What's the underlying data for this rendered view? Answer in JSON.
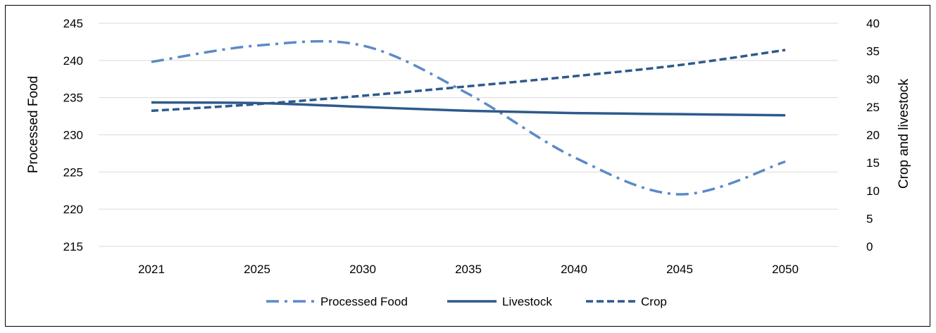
{
  "colors": {
    "processed_food": "#5b8ac7",
    "livestock": "#2e5a8c",
    "crop": "#2e5a8c",
    "grid": "#d9d9d9"
  },
  "chart_data": {
    "type": "line",
    "categories": [
      "2021",
      "2025",
      "2030",
      "2035",
      "2040",
      "2045",
      "2050"
    ],
    "y_left": {
      "label": "Processed Food",
      "min": 215,
      "max": 245,
      "step": 5
    },
    "y_right": {
      "label": "Crop and livestock",
      "min": 0,
      "max": 40,
      "step": 5
    },
    "grid": true,
    "legend_position": "bottom",
    "series": [
      {
        "name": "Processed Food",
        "axis": "left",
        "style": "dash-dot",
        "values": [
          239.8,
          242.0,
          242.0,
          235.5,
          227.0,
          222.0,
          226.4
        ]
      },
      {
        "name": "Livestock",
        "axis": "right",
        "style": "solid",
        "values": [
          25.8,
          25.7,
          25.0,
          24.3,
          23.9,
          23.7,
          23.5
        ]
      },
      {
        "name": "Crop",
        "axis": "right",
        "style": "dashed",
        "values": [
          24.3,
          25.5,
          27.0,
          28.7,
          30.5,
          32.5,
          35.2
        ]
      }
    ]
  }
}
